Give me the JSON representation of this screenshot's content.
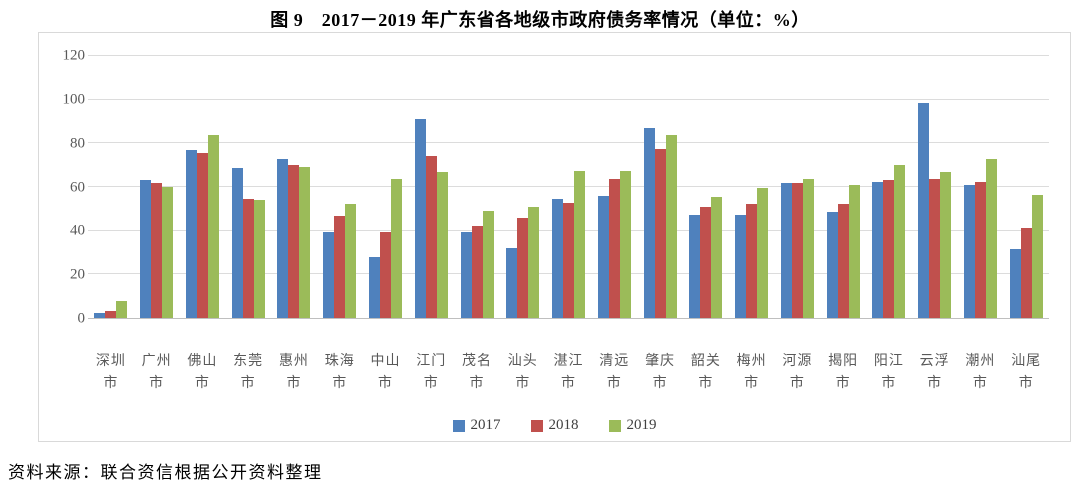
{
  "title": "图 9　2017－2019 年广东省各地级市政府债务率情况（单位：%）",
  "source": "资料来源：联合资信根据公开资料整理",
  "colors": {
    "series_2017": "#4F81BD",
    "series_2018": "#C0504D",
    "series_2019": "#9BBB59",
    "gridline": "#dcdcdc",
    "axis_line": "#bfbfbf",
    "frame_border": "#d9d9d9",
    "axis_text": "#595959"
  },
  "chart_data": {
    "type": "bar",
    "title": "图 9　2017－2019 年广东省各地级市政府债务率情况（单位：%）",
    "xlabel": "",
    "ylabel": "",
    "ylim": [
      0,
      120
    ],
    "yticks": [
      0,
      20,
      40,
      60,
      80,
      100,
      120
    ],
    "grid": true,
    "legend_position": "bottom",
    "categories": [
      "深圳市",
      "广州市",
      "佛山市",
      "东莞市",
      "惠州市",
      "珠海市",
      "中山市",
      "江门市",
      "茂名市",
      "汕头市",
      "湛江市",
      "清远市",
      "肇庆市",
      "韶关市",
      "梅州市",
      "河源市",
      "揭阳市",
      "阳江市",
      "云浮市",
      "潮州市",
      "汕尾市"
    ],
    "series": [
      {
        "name": "2017",
        "color": "#4F81BD",
        "values": [
          2.5,
          63,
          77,
          68.5,
          73,
          39.5,
          28,
          91,
          39.5,
          32,
          54.5,
          56,
          87,
          47,
          47,
          62,
          48.5,
          62.5,
          98.5,
          61,
          31.5
        ]
      },
      {
        "name": "2018",
        "color": "#C0504D",
        "values": [
          3,
          62,
          75.5,
          54.5,
          70,
          46.5,
          39.5,
          74,
          42,
          46,
          52.5,
          63.5,
          77.5,
          51,
          52,
          62,
          52,
          63,
          63.5,
          62.5,
          41
        ]
      },
      {
        "name": "2019",
        "color": "#9BBB59",
        "values": [
          8,
          60,
          84,
          54,
          69,
          52,
          63.5,
          67,
          49,
          51,
          67.5,
          67.5,
          84,
          55.5,
          59.5,
          63.5,
          61,
          70,
          67,
          73,
          56.5
        ]
      }
    ]
  }
}
